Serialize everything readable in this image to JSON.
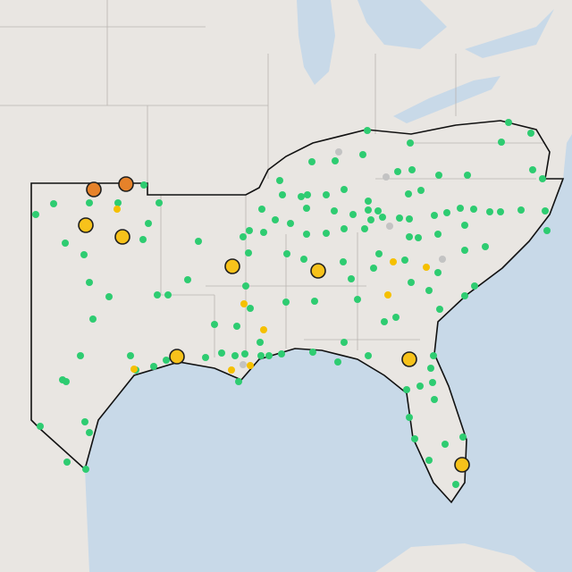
{
  "map": {
    "layers": [
      {
        "kind": "small",
        "color": "#2ecc71",
        "points": [
          [
            -100,
            31.6
          ],
          [
            -98,
            31.65
          ],
          [
            -96.4,
            31.65
          ],
          [
            -94.1,
            31.65
          ],
          [
            -94.95,
            32.65
          ],
          [
            -101,
            31
          ],
          [
            -99.35,
            29.4
          ],
          [
            -98.3,
            28.75
          ],
          [
            -95,
            29.6
          ],
          [
            -94.7,
            30.5
          ],
          [
            -91.9,
            29.5
          ],
          [
            -92.5,
            27.35
          ],
          [
            -94.2,
            26.5
          ],
          [
            -93.6,
            26.5
          ],
          [
            -98,
            27.2
          ],
          [
            -96.9,
            26.4
          ],
          [
            -97.8,
            25.15
          ],
          [
            -98.5,
            23.1
          ],
          [
            -99.5,
            21.75
          ],
          [
            -99.3,
            21.65
          ],
          [
            -98.25,
            19.4
          ],
          [
            -98,
            18.8
          ],
          [
            -100.75,
            19.15
          ],
          [
            -99.25,
            17.15
          ],
          [
            -98.2,
            16.75
          ],
          [
            -95.7,
            23.1
          ],
          [
            -95.4,
            22.3
          ],
          [
            -94.4,
            22.5
          ],
          [
            -93.7,
            22.85
          ],
          [
            -91.5,
            23
          ],
          [
            -90.6,
            23.25
          ],
          [
            -89.85,
            23.1
          ],
          [
            -89.65,
            21.65
          ],
          [
            -89.3,
            23.2
          ],
          [
            -88.4,
            23.1
          ],
          [
            -87.95,
            23.1
          ],
          [
            -87.25,
            23.2
          ],
          [
            -85.5,
            23.3
          ],
          [
            -83.75,
            23.85
          ],
          [
            -84.1,
            22.75
          ],
          [
            -82.4,
            23.1
          ],
          [
            -88.45,
            23.85
          ],
          [
            -91,
            24.85
          ],
          [
            -89.75,
            24.75
          ],
          [
            -89,
            25.75
          ],
          [
            -89.25,
            27
          ],
          [
            -89.4,
            29.75
          ],
          [
            -89.05,
            30.1
          ],
          [
            -89.1,
            28.85
          ],
          [
            -88.35,
            31.3
          ],
          [
            -87.2,
            32.1
          ],
          [
            -86.15,
            32
          ],
          [
            -85.8,
            32.1
          ],
          [
            -84.75,
            32.1
          ],
          [
            -83.75,
            32.4
          ],
          [
            -82.4,
            31.75
          ],
          [
            -87.35,
            32.9
          ],
          [
            -85.55,
            33.95
          ],
          [
            -84.25,
            34
          ],
          [
            -82.7,
            34.35
          ],
          [
            -82.45,
            35.7
          ],
          [
            -80.75,
            33.4
          ],
          [
            -80.05,
            35
          ],
          [
            -79.95,
            33.5
          ],
          [
            -78.45,
            33.2
          ],
          [
            -76.85,
            33.2
          ],
          [
            -74.95,
            35.05
          ],
          [
            -74.55,
            36.15
          ],
          [
            -73.3,
            35.55
          ],
          [
            -73.2,
            33.5
          ],
          [
            -72.65,
            33
          ],
          [
            -72.5,
            31.2
          ],
          [
            -72.4,
            30.1
          ],
          [
            -73.85,
            31.25
          ],
          [
            -75,
            31.15
          ],
          [
            -75.6,
            31.15
          ],
          [
            -76.5,
            31.3
          ],
          [
            -77.25,
            31.35
          ],
          [
            -78,
            31.1
          ],
          [
            -78.7,
            30.95
          ],
          [
            -80.1,
            30.75
          ],
          [
            -80.65,
            30.8
          ],
          [
            -81.6,
            30.85
          ],
          [
            -82.4,
            31.25
          ],
          [
            -82.25,
            30.7
          ],
          [
            -83.25,
            31
          ],
          [
            -83.75,
            30.2
          ],
          [
            -84.75,
            29.95
          ],
          [
            -85.85,
            29.9
          ],
          [
            -86.75,
            30.5
          ],
          [
            -87.6,
            30.7
          ],
          [
            -88.25,
            30
          ],
          [
            -86.95,
            28.8
          ],
          [
            -86,
            28.5
          ],
          [
            -83.8,
            28.35
          ],
          [
            -83.35,
            27.4
          ],
          [
            -82.1,
            28
          ],
          [
            -81.8,
            28.8
          ],
          [
            -80.1,
            29.75
          ],
          [
            -79.6,
            29.7
          ],
          [
            -78.5,
            29.9
          ],
          [
            -77,
            30.4
          ],
          [
            -77,
            29
          ],
          [
            -75.85,
            29.2
          ],
          [
            -76.45,
            27
          ],
          [
            -77,
            26.45
          ],
          [
            -78.4,
            25.7
          ],
          [
            -78.5,
            27.75
          ],
          [
            -79,
            26.75
          ],
          [
            -80.35,
            28.45
          ],
          [
            -80,
            27.2
          ],
          [
            -83,
            26.25
          ],
          [
            -87,
            26.1
          ],
          [
            -85.4,
            26.15
          ],
          [
            -80.85,
            25.25
          ],
          [
            -78.75,
            23.1
          ],
          [
            -78.9,
            22.4
          ],
          [
            -78.8,
            21.6
          ],
          [
            -78.7,
            20.65
          ],
          [
            -79.5,
            21.4
          ],
          [
            -80.25,
            21.2
          ],
          [
            -80.1,
            19.65
          ],
          [
            -79.8,
            18.45
          ],
          [
            -79,
            17.25
          ],
          [
            -78.1,
            18.15
          ],
          [
            -77.5,
            15.9
          ],
          [
            -77.1,
            18.55
          ],
          [
            -81.85,
            31.2
          ],
          [
            -85.85,
            31.35
          ],
          [
            -84.3,
            31.2
          ],
          [
            -82.6,
            30.2
          ],
          [
            -80.15,
            32.15
          ],
          [
            -79.45,
            32.35
          ],
          [
            -81.5,
            25
          ]
        ]
      },
      {
        "kind": "small",
        "color": "#f5c000",
        "points": [
          [
            -96.45,
            31.3
          ],
          [
            -89.35,
            26
          ],
          [
            -88.25,
            24.55
          ],
          [
            -81,
            28.35
          ],
          [
            -79.15,
            28.05
          ],
          [
            -81.3,
            26.5
          ],
          [
            -90.05,
            22.3
          ],
          [
            -89,
            22.55
          ],
          [
            -95.5,
            22.35
          ]
        ]
      },
      {
        "kind": "small",
        "color": "#c3c3c3",
        "points": [
          [
            -84.05,
            34.5
          ],
          [
            -81.4,
            33.1
          ],
          [
            -78.25,
            28.5
          ],
          [
            -81.2,
            30.35
          ],
          [
            -89.4,
            22.6
          ]
        ]
      },
      {
        "kind": "large",
        "color": "#f7c21b",
        "points": [
          [
            -98.2,
            30.4
          ],
          [
            -96.15,
            29.75
          ],
          [
            -90,
            28.1
          ],
          [
            -85.2,
            27.85
          ],
          [
            -93.1,
            23.05
          ],
          [
            -80.1,
            22.9
          ],
          [
            -77.15,
            17
          ]
        ]
      },
      {
        "kind": "large",
        "color": "#e6822a",
        "points": [
          [
            -97.75,
            32.4
          ],
          [
            -95.95,
            32.7
          ]
        ]
      }
    ]
  }
}
